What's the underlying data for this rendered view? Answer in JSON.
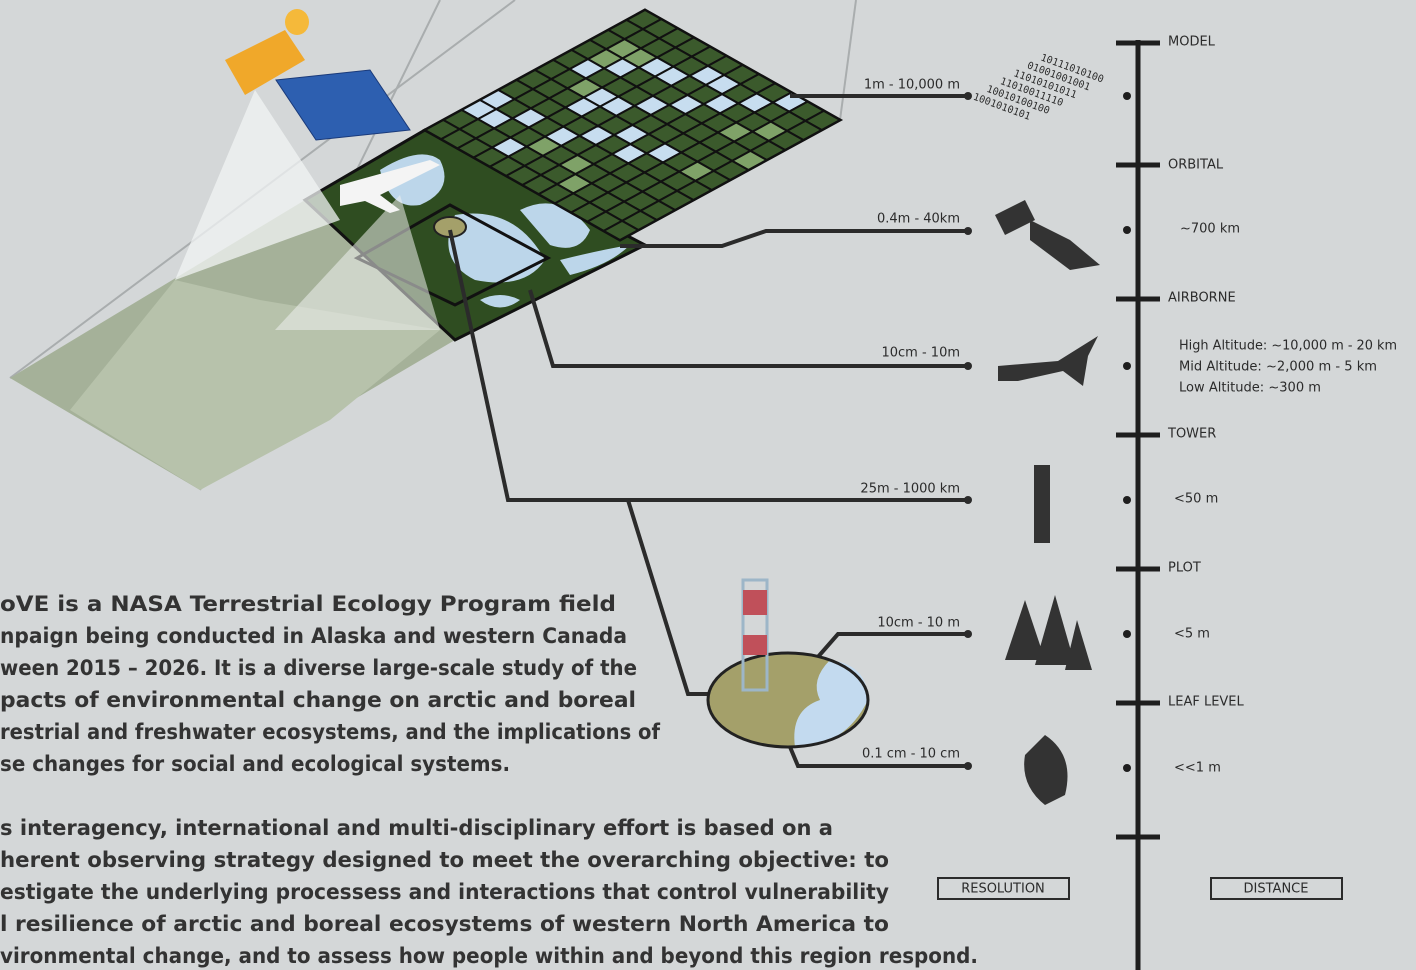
{
  "scale": {
    "levels": [
      "MODEL",
      "ORBITAL",
      "AIRBORNE",
      "TOWER",
      "PLOT",
      "LEAF LEVEL"
    ],
    "distances": [
      "~700 km",
      "<50 m",
      "<5 m",
      "<<1 m"
    ],
    "altitudes": [
      "High Altitude: ~10,000 m - 20 km",
      "Mid Altitude: ~2,000 m - 5 km",
      "Low Altitude: ~300 m"
    ]
  },
  "resolutions": [
    "1m - 10,000 m",
    "0.4m - 40km",
    "10cm - 10m",
    "25m - 1000 km",
    "10cm - 10 m",
    "0.1 cm - 10 cm"
  ],
  "binary": [
    "10111010100",
    "01001001001",
    "11010101011",
    "11010011110",
    "10010100100",
    "1001010101"
  ],
  "paragraphs": [
    [
      "oVE is a NASA Terrestrial Ecology Program field",
      "npaign being conducted in Alaska and western Canada",
      "ween 2015 – 2026. It is a diverse large-scale study of the",
      "pacts of environmental change on arctic and boreal",
      "restrial and freshwater ecosystems, and the implications of",
      "se changes for social and ecological systems."
    ],
    [
      "s interagency, international and multi-disciplinary effort is based on a",
      "herent observing strategy designed to meet the overarching objective: to",
      "estigate the underlying processess and interactions that control vulnerability",
      "l resilience of arctic and boreal ecosystems of western North America to",
      "vironmental change, and to assess how people within and beyond this region respond."
    ]
  ],
  "footer": {
    "resolution": "RESOLUTION",
    "distance": "DISTANCE"
  }
}
